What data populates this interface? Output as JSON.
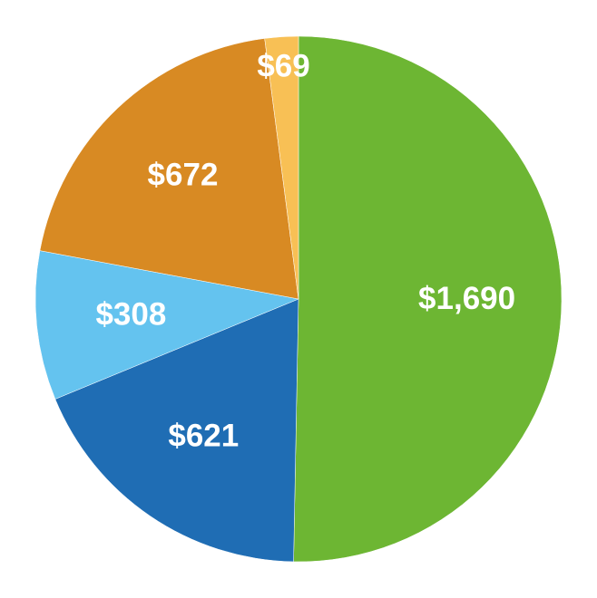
{
  "chart_data": {
    "type": "pie",
    "values": [
      1690,
      621,
      308,
      672,
      69
    ],
    "value_labels": [
      "$1,690",
      "$621",
      "$308",
      "$672",
      "$69"
    ],
    "colors": [
      "#6db633",
      "#1f6db4",
      "#64c3ef",
      "#d88a23",
      "#f8c055"
    ]
  }
}
